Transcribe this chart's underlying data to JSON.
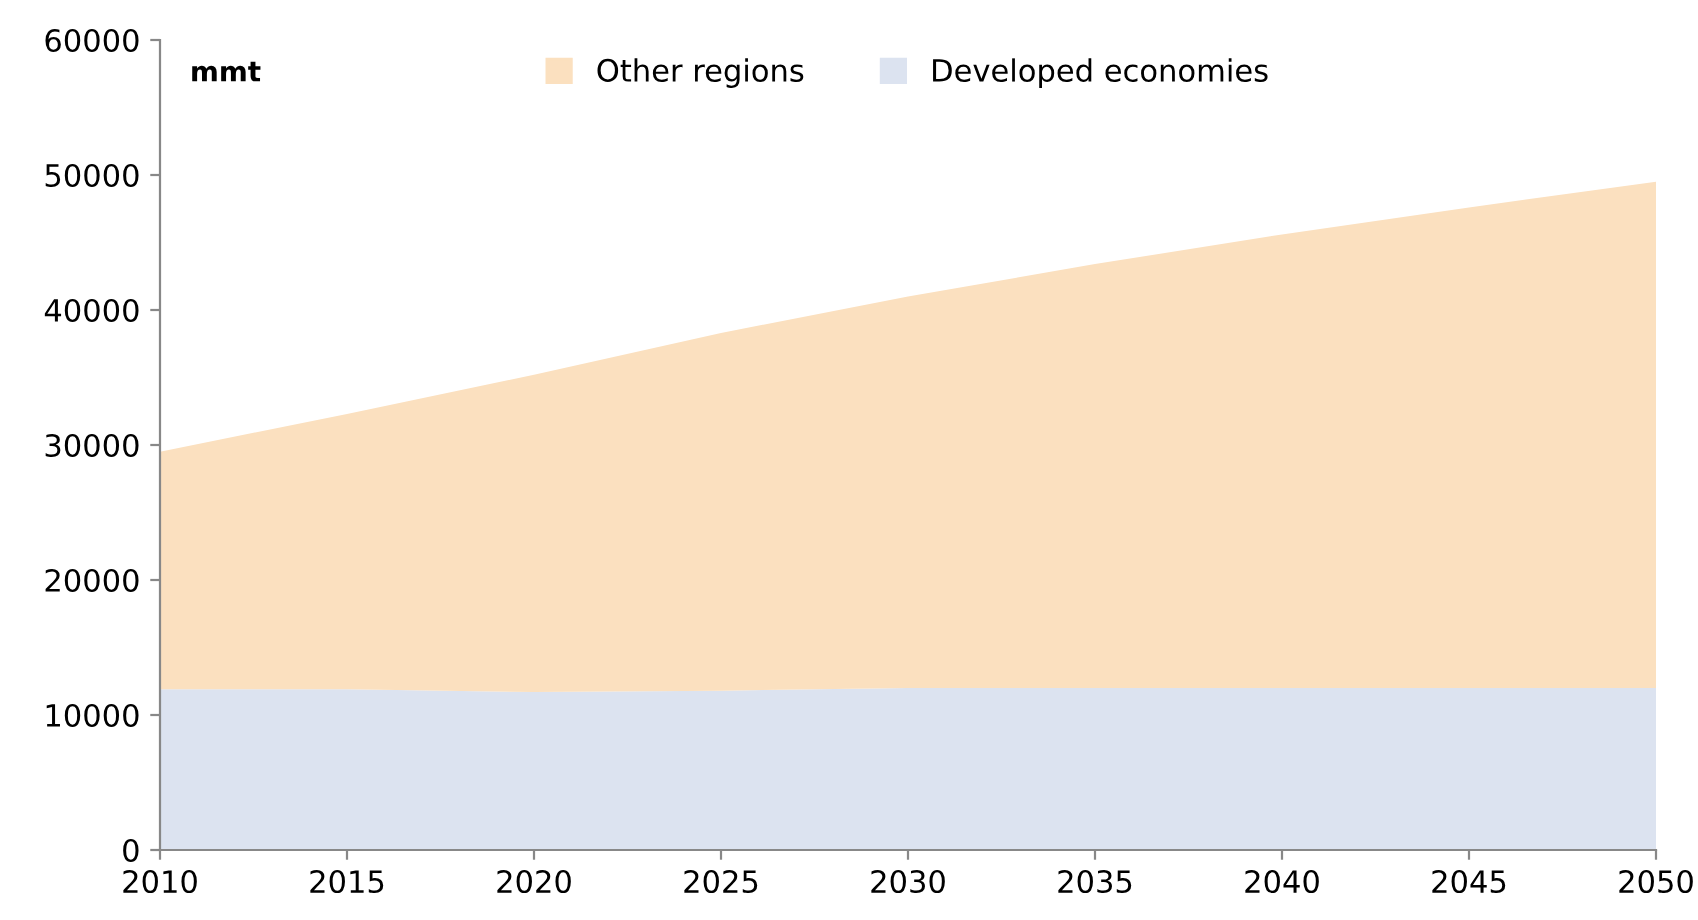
{
  "chart_data": {
    "type": "area",
    "stacked": true,
    "ylabel": "mmt",
    "x": [
      2010,
      2015,
      2020,
      2025,
      2030,
      2035,
      2040,
      2045,
      2050
    ],
    "series": [
      {
        "name": "Developed economies",
        "color": "#dce3f0",
        "values": [
          11900,
          11900,
          11700,
          11800,
          12000,
          12000,
          12000,
          12000,
          12000
        ]
      },
      {
        "name": "Other regions",
        "color": "#fbe0bf",
        "values": [
          17600,
          20400,
          23500,
          26500,
          29000,
          31400,
          33600,
          35600,
          37500
        ]
      }
    ],
    "xlim": [
      2010,
      2050
    ],
    "xticks": [
      2010,
      2015,
      2020,
      2025,
      2030,
      2035,
      2040,
      2045,
      2050
    ],
    "ylim": [
      0,
      60000
    ],
    "yticks": [
      0,
      10000,
      20000,
      30000,
      40000,
      50000,
      60000
    ],
    "grid": false,
    "legend": "top"
  }
}
